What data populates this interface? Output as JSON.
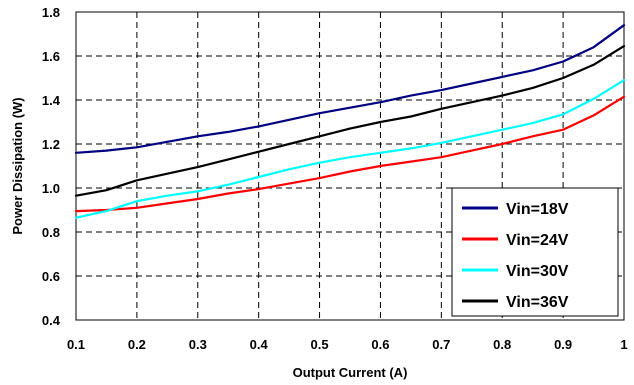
{
  "chart_data": {
    "type": "line",
    "xlabel": "Output Current (A)",
    "ylabel": "Power Dissipation (W)",
    "xlim": [
      0.1,
      1.0
    ],
    "ylim": [
      0.4,
      1.8
    ],
    "xticks": [
      0.1,
      0.2,
      0.3,
      0.4,
      0.5,
      0.6,
      0.7,
      0.8,
      0.9,
      1.0
    ],
    "xtick_labels": [
      "0.1",
      "0.2",
      "0.3",
      "0.4",
      "0.5",
      "0.6",
      "0.7",
      "0.8",
      "0.9",
      "1"
    ],
    "yticks": [
      0.4,
      0.6,
      0.8,
      1.0,
      1.2,
      1.4,
      1.6,
      1.8
    ],
    "ytick_labels": [
      "0.4",
      "0.6",
      "0.8",
      "1.0",
      "1.2",
      "1.4",
      "1.6",
      "1.8"
    ],
    "grid": true,
    "legend_position": "bottom-right",
    "x": [
      0.1,
      0.15,
      0.2,
      0.25,
      0.3,
      0.35,
      0.4,
      0.45,
      0.5,
      0.55,
      0.6,
      0.65,
      0.7,
      0.75,
      0.8,
      0.85,
      0.9,
      0.95,
      1.0
    ],
    "series": [
      {
        "name": "Vin=18V",
        "color": "#000080",
        "values": [
          1.16,
          1.17,
          1.185,
          1.21,
          1.235,
          1.255,
          1.28,
          1.31,
          1.34,
          1.365,
          1.39,
          1.42,
          1.445,
          1.475,
          1.505,
          1.535,
          1.575,
          1.64,
          1.74
        ]
      },
      {
        "name": "Vin=24V",
        "color": "#ff0000",
        "values": [
          0.895,
          0.9,
          0.91,
          0.93,
          0.95,
          0.975,
          0.995,
          1.02,
          1.045,
          1.075,
          1.1,
          1.12,
          1.14,
          1.17,
          1.2,
          1.235,
          1.265,
          1.33,
          1.415
        ]
      },
      {
        "name": "Vin=30V",
        "color": "#00ffff",
        "values": [
          0.865,
          0.895,
          0.94,
          0.965,
          0.985,
          1.015,
          1.05,
          1.085,
          1.115,
          1.14,
          1.16,
          1.18,
          1.205,
          1.235,
          1.265,
          1.295,
          1.335,
          1.405,
          1.49
        ]
      },
      {
        "name": "Vin=36V",
        "color": "#000000",
        "values": [
          0.965,
          0.99,
          1.035,
          1.065,
          1.095,
          1.13,
          1.165,
          1.2,
          1.235,
          1.27,
          1.3,
          1.325,
          1.36,
          1.39,
          1.42,
          1.455,
          1.5,
          1.56,
          1.645
        ]
      }
    ]
  }
}
